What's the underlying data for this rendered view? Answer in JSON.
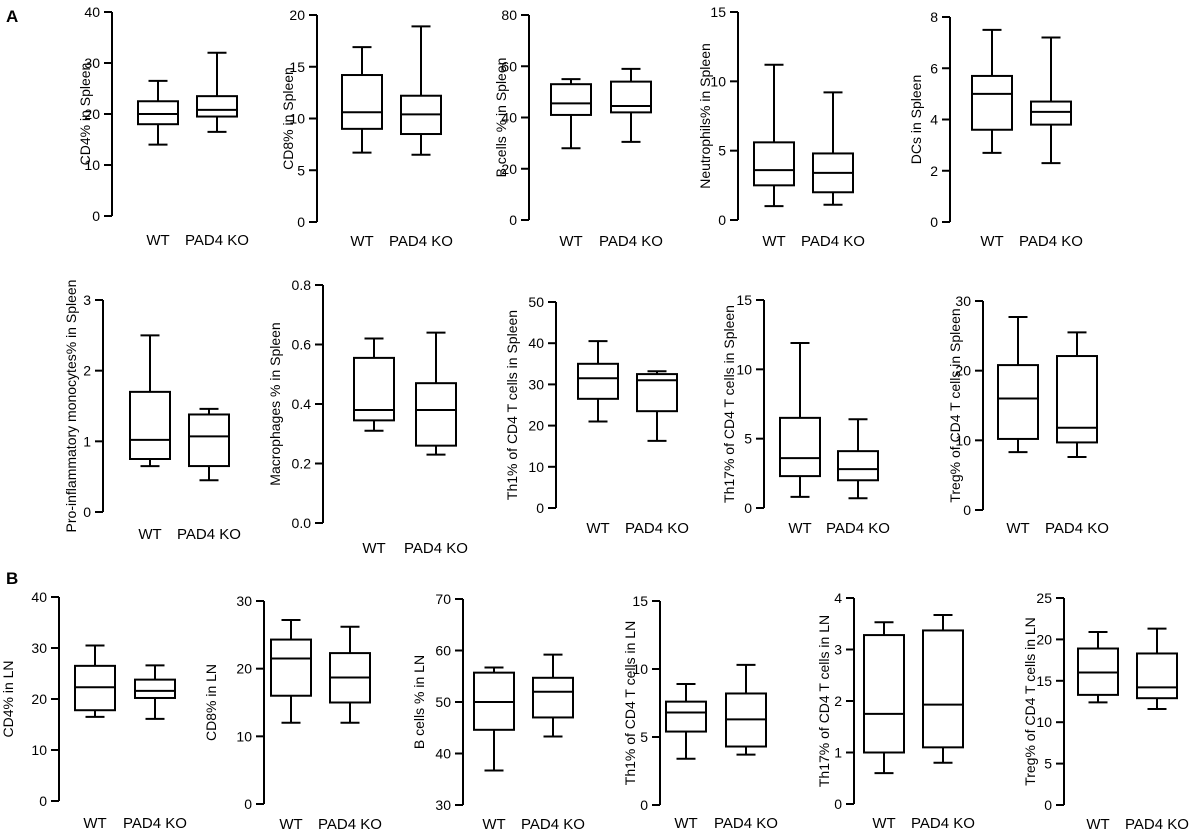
{
  "figure": {
    "panel_letters": [
      "A",
      "B"
    ]
  },
  "chart_data": [
    {
      "type": "box",
      "title": "",
      "ylabel": "CD4% in Spleen",
      "ylim": [
        0,
        40
      ],
      "yticks": [
        0,
        10,
        20,
        30,
        40
      ],
      "categories": [
        "WT",
        "PAD4 KO"
      ],
      "boxes": [
        {
          "min": 14,
          "q1": 18,
          "median": 20,
          "q3": 22.5,
          "max": 26.5
        },
        {
          "min": 16.5,
          "q1": 19.5,
          "median": 20.8,
          "q3": 23.5,
          "max": 32
        }
      ]
    },
    {
      "type": "box",
      "title": "",
      "ylabel": "CD8% in Spleen",
      "ylim": [
        0,
        20
      ],
      "yticks": [
        0,
        5,
        10,
        15,
        20
      ],
      "categories": [
        "WT",
        "PAD4 KO"
      ],
      "boxes": [
        {
          "min": 6.7,
          "q1": 9,
          "median": 10.6,
          "q3": 14.2,
          "max": 16.9
        },
        {
          "min": 6.5,
          "q1": 8.5,
          "median": 10.4,
          "q3": 12.2,
          "max": 18.9
        }
      ]
    },
    {
      "type": "box",
      "title": "",
      "ylabel": "B cells % in Spleen",
      "ylim": [
        0,
        80
      ],
      "yticks": [
        0,
        20,
        40,
        60,
        80
      ],
      "categories": [
        "WT",
        "PAD4 KO"
      ],
      "boxes": [
        {
          "min": 28,
          "q1": 41,
          "median": 45.5,
          "q3": 53,
          "max": 55
        },
        {
          "min": 30.5,
          "q1": 42,
          "median": 44.5,
          "q3": 54,
          "max": 59
        }
      ]
    },
    {
      "type": "box",
      "title": "",
      "ylabel": "Neutrophils% in Spleen",
      "ylim": [
        0,
        15
      ],
      "yticks": [
        0,
        5,
        10,
        15
      ],
      "categories": [
        "WT",
        "PAD4 KO"
      ],
      "boxes": [
        {
          "min": 1,
          "q1": 2.5,
          "median": 3.6,
          "q3": 5.6,
          "max": 11.2
        },
        {
          "min": 1.1,
          "q1": 2,
          "median": 3.4,
          "q3": 4.8,
          "max": 9.2
        }
      ]
    },
    {
      "type": "box",
      "title": "",
      "ylabel": "DCs in Spleen",
      "ylim": [
        0,
        8
      ],
      "yticks": [
        0,
        2,
        4,
        6,
        8
      ],
      "categories": [
        "WT",
        "PAD4 KO"
      ],
      "boxes": [
        {
          "min": 2.7,
          "q1": 3.6,
          "median": 5,
          "q3": 5.7,
          "max": 7.5
        },
        {
          "min": 2.3,
          "q1": 3.8,
          "median": 4.3,
          "q3": 4.7,
          "max": 7.2
        }
      ]
    },
    {
      "type": "box",
      "title": "",
      "ylabel": "Pro-inflammatory monocytes% in Spleen",
      "ylim": [
        0,
        3
      ],
      "yticks": [
        0,
        1,
        2,
        3
      ],
      "categories": [
        "WT",
        "PAD4 KO"
      ],
      "boxes": [
        {
          "min": 0.65,
          "q1": 0.75,
          "median": 1.02,
          "q3": 1.7,
          "max": 2.5
        },
        {
          "min": 0.45,
          "q1": 0.65,
          "median": 1.07,
          "q3": 1.38,
          "max": 1.46
        }
      ]
    },
    {
      "type": "box",
      "title": "",
      "ylabel": "Macrophages % in Spleen",
      "ylim": [
        0,
        0.8
      ],
      "yticks": [
        0,
        0.2,
        0.4,
        0.6,
        0.8
      ],
      "yticklabels": [
        "0.0",
        "0.2",
        "0.4",
        "0.6",
        "0.8"
      ],
      "categories": [
        "WT",
        "PAD4 KO"
      ],
      "boxes": [
        {
          "min": 0.31,
          "q1": 0.345,
          "median": 0.38,
          "q3": 0.555,
          "max": 0.62
        },
        {
          "min": 0.23,
          "q1": 0.26,
          "median": 0.38,
          "q3": 0.47,
          "max": 0.64
        }
      ]
    },
    {
      "type": "box",
      "title": "",
      "ylabel": "Th1% of CD4 T cells in Spleen",
      "ylim": [
        0,
        50
      ],
      "yticks": [
        0,
        10,
        20,
        30,
        40,
        50
      ],
      "categories": [
        "WT",
        "PAD4 KO"
      ],
      "boxes": [
        {
          "min": 21,
          "q1": 26.5,
          "median": 31.5,
          "q3": 35,
          "max": 40.5
        },
        {
          "min": 16.3,
          "q1": 23.5,
          "median": 31,
          "q3": 32.5,
          "max": 33.2
        }
      ]
    },
    {
      "type": "box",
      "title": "",
      "ylabel": "Th17% of CD4 T cells in Spleen",
      "ylim": [
        0,
        15
      ],
      "yticks": [
        0,
        5,
        10,
        15
      ],
      "categories": [
        "WT",
        "PAD4 KO"
      ],
      "boxes": [
        {
          "min": 0.8,
          "q1": 2.3,
          "median": 3.6,
          "q3": 6.5,
          "max": 11.9
        },
        {
          "min": 0.7,
          "q1": 2,
          "median": 2.8,
          "q3": 4.1,
          "max": 6.4
        }
      ]
    },
    {
      "type": "box",
      "title": "",
      "ylabel": "Treg% of CD4 T cells in Spleen",
      "ylim": [
        0,
        30
      ],
      "yticks": [
        0,
        10,
        20,
        30
      ],
      "categories": [
        "WT",
        "PAD4 KO"
      ],
      "boxes": [
        {
          "min": 8.3,
          "q1": 10.2,
          "median": 16,
          "q3": 20.8,
          "max": 27.7
        },
        {
          "min": 7.6,
          "q1": 9.7,
          "median": 11.8,
          "q3": 22.1,
          "max": 25.5
        }
      ]
    },
    {
      "type": "box",
      "title": "",
      "ylabel": "CD4% in LN",
      "ylim": [
        0,
        40
      ],
      "yticks": [
        0,
        10,
        20,
        30,
        40
      ],
      "categories": [
        "WT",
        "PAD4 KO"
      ],
      "boxes": [
        {
          "min": 16.5,
          "q1": 17.8,
          "median": 22.3,
          "q3": 26.5,
          "max": 30.5
        },
        {
          "min": 16.1,
          "q1": 20.2,
          "median": 21.6,
          "q3": 23.8,
          "max": 26.6
        }
      ]
    },
    {
      "type": "box",
      "title": "",
      "ylabel": "CD8% in LN",
      "ylim": [
        0,
        30
      ],
      "yticks": [
        0,
        10,
        20,
        30
      ],
      "categories": [
        "WT",
        "PAD4 KO"
      ],
      "boxes": [
        {
          "min": 12,
          "q1": 16,
          "median": 21.5,
          "q3": 24.3,
          "max": 27.2
        },
        {
          "min": 12,
          "q1": 15,
          "median": 18.7,
          "q3": 22.3,
          "max": 26.2
        }
      ]
    },
    {
      "type": "box",
      "title": "",
      "ylabel": "B cells % in LN",
      "ylim": [
        30,
        70
      ],
      "yticks": [
        30,
        40,
        50,
        60,
        70
      ],
      "categories": [
        "WT",
        "PAD4 KO"
      ],
      "boxes": [
        {
          "min": 36.7,
          "q1": 44.6,
          "median": 50,
          "q3": 55.7,
          "max": 56.7
        },
        {
          "min": 43.3,
          "q1": 47,
          "median": 52,
          "q3": 54.7,
          "max": 59.2
        }
      ]
    },
    {
      "type": "box",
      "title": "",
      "ylabel": "Th1% of CD4 T cells in LN",
      "ylim": [
        0,
        15
      ],
      "yticks": [
        0,
        5,
        10,
        15
      ],
      "categories": [
        "WT",
        "PAD4 KO"
      ],
      "boxes": [
        {
          "min": 3.4,
          "q1": 5.4,
          "median": 6.8,
          "q3": 7.6,
          "max": 8.9
        },
        {
          "min": 3.7,
          "q1": 4.3,
          "median": 6.3,
          "q3": 8.2,
          "max": 10.3
        }
      ]
    },
    {
      "type": "box",
      "title": "",
      "ylabel": "Th17% of CD4 T cells in LN",
      "ylim": [
        0,
        4
      ],
      "yticks": [
        0,
        1,
        2,
        3,
        4
      ],
      "categories": [
        "WT",
        "PAD4 KO"
      ],
      "boxes": [
        {
          "min": 0.6,
          "q1": 1,
          "median": 1.75,
          "q3": 3.28,
          "max": 3.53
        },
        {
          "min": 0.8,
          "q1": 1.1,
          "median": 1.93,
          "q3": 3.37,
          "max": 3.67
        }
      ]
    },
    {
      "type": "box",
      "title": "",
      "ylabel": "Treg% of CD4 T cells in LN",
      "ylim": [
        0,
        25
      ],
      "yticks": [
        0,
        5,
        10,
        15,
        20,
        25
      ],
      "categories": [
        "WT",
        "PAD4 KO"
      ],
      "boxes": [
        {
          "min": 12.4,
          "q1": 13.3,
          "median": 16,
          "q3": 18.9,
          "max": 20.9
        },
        {
          "min": 11.6,
          "q1": 12.9,
          "median": 14.2,
          "q3": 18.3,
          "max": 21.3
        }
      ]
    }
  ]
}
